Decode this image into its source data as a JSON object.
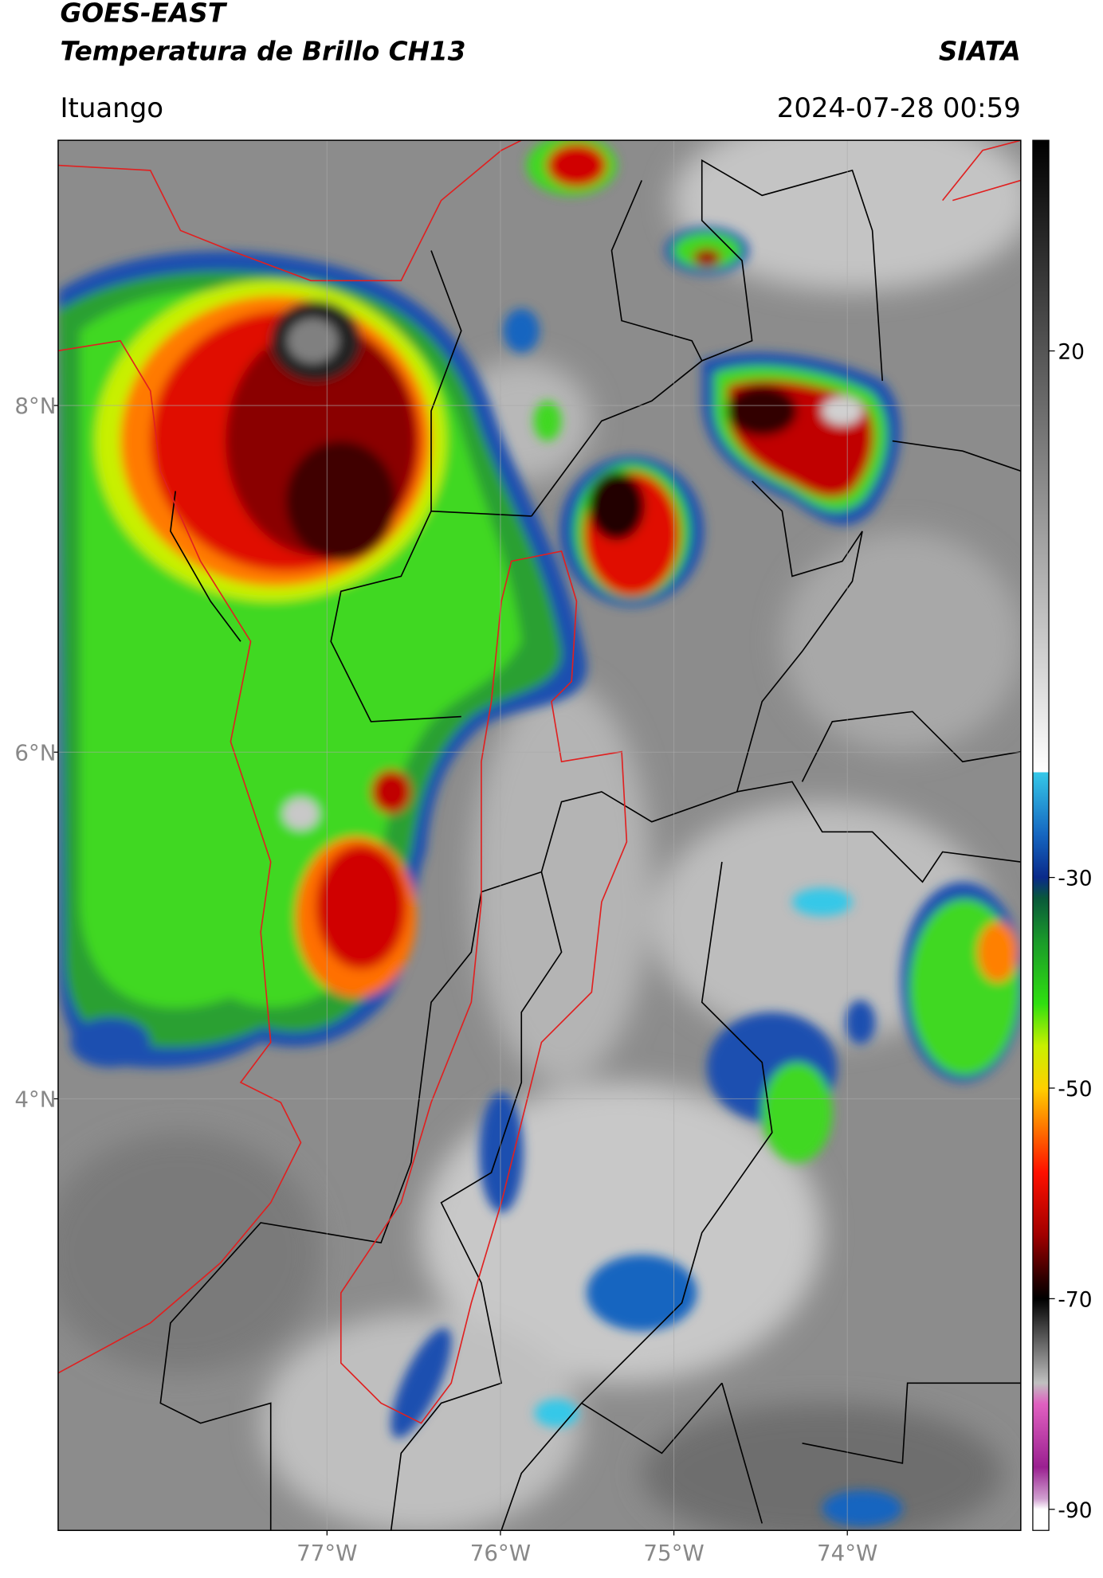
{
  "header": {
    "title": "GOES-EAST",
    "subtitle": "Temperatura de Brillo CH13",
    "source": "SIATA",
    "location": "Ituango",
    "datetime": "2024-07-28 00:59"
  },
  "map": {
    "lon_range": [
      -78.55,
      -73.0
    ],
    "lat_range": [
      1.51,
      9.53
    ],
    "grid": true,
    "lat_ticks": [
      {
        "value": 8,
        "label": "8°N"
      },
      {
        "value": 6,
        "label": "6°N"
      },
      {
        "value": 4,
        "label": "4°N"
      }
    ],
    "lon_ticks": [
      {
        "value": -77,
        "label": "77°W"
      },
      {
        "value": -76,
        "label": "76°W"
      },
      {
        "value": -75,
        "label": "75°W"
      },
      {
        "value": -74,
        "label": "74°W"
      }
    ]
  },
  "colorbar": {
    "range": [
      -92,
      40
    ],
    "ticks": [
      20,
      -30,
      -50,
      -70,
      -90
    ],
    "colormap": [
      [
        40,
        "#000000"
      ],
      [
        -20,
        "#ffffff"
      ],
      [
        -20,
        "#35c8e8"
      ],
      [
        -26,
        "#1565c0"
      ],
      [
        -30,
        "#0a2a8a"
      ],
      [
        -32,
        "#0a5a3a"
      ],
      [
        -36,
        "#1a9a2a"
      ],
      [
        -42,
        "#30e010"
      ],
      [
        -46,
        "#c8f000"
      ],
      [
        -50,
        "#ffd000"
      ],
      [
        -54,
        "#ff7000"
      ],
      [
        -58,
        "#ff1000"
      ],
      [
        -64,
        "#a00000"
      ],
      [
        -68,
        "#300000"
      ],
      [
        -70,
        "#000000"
      ],
      [
        -78,
        "#c0c0c0"
      ],
      [
        -80,
        "#e060c0"
      ],
      [
        -86,
        "#9a2090"
      ],
      [
        -89,
        "#d0a0d0"
      ],
      [
        -90,
        "#ffffff"
      ],
      [
        -92,
        "#ffffff"
      ]
    ]
  }
}
